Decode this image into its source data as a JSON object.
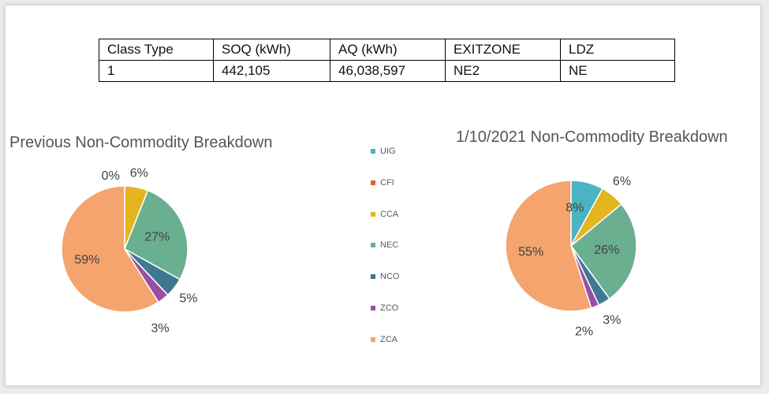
{
  "table": {
    "headers": [
      "Class Type",
      "SOQ (kWh)",
      "AQ (kWh)",
      "EXITZONE",
      "LDZ"
    ],
    "row": [
      "1",
      "442,105",
      "46,038,597",
      "NE2",
      "NE"
    ]
  },
  "colors": {
    "UIG": "#4bb3c4",
    "CFI": "#e8602c",
    "CCA": "#e3b51e",
    "NEC": "#6aaf8f",
    "NCO": "#3f7891",
    "ZCO": "#9b4ea6",
    "ZCA": "#f4a46c"
  },
  "legend": [
    "UIG",
    "CFI",
    "CCA",
    "NEC",
    "NCO",
    "ZCO",
    "ZCA"
  ],
  "chart_data": [
    {
      "type": "pie",
      "title": "Previous Non-Commodity Breakdown",
      "categories": [
        "UIG",
        "CFI",
        "CCA",
        "NEC",
        "NCO",
        "ZCO",
        "ZCA"
      ],
      "values": [
        0,
        0,
        6,
        27,
        5,
        3,
        59
      ],
      "data_labels": [
        "0%",
        "",
        "6%",
        "27%",
        "5%",
        "3%",
        "59%"
      ],
      "legend": "center"
    },
    {
      "type": "pie",
      "title": "1/10/2021 Non-Commodity Breakdown",
      "categories": [
        "UIG",
        "CFI",
        "CCA",
        "NEC",
        "NCO",
        "ZCO",
        "ZCA"
      ],
      "values": [
        8,
        0,
        6,
        26,
        3,
        2,
        55
      ],
      "data_labels": [
        "8%",
        "",
        "6%",
        "26%",
        "3%",
        "2%",
        "55%"
      ],
      "legend": "center"
    }
  ]
}
